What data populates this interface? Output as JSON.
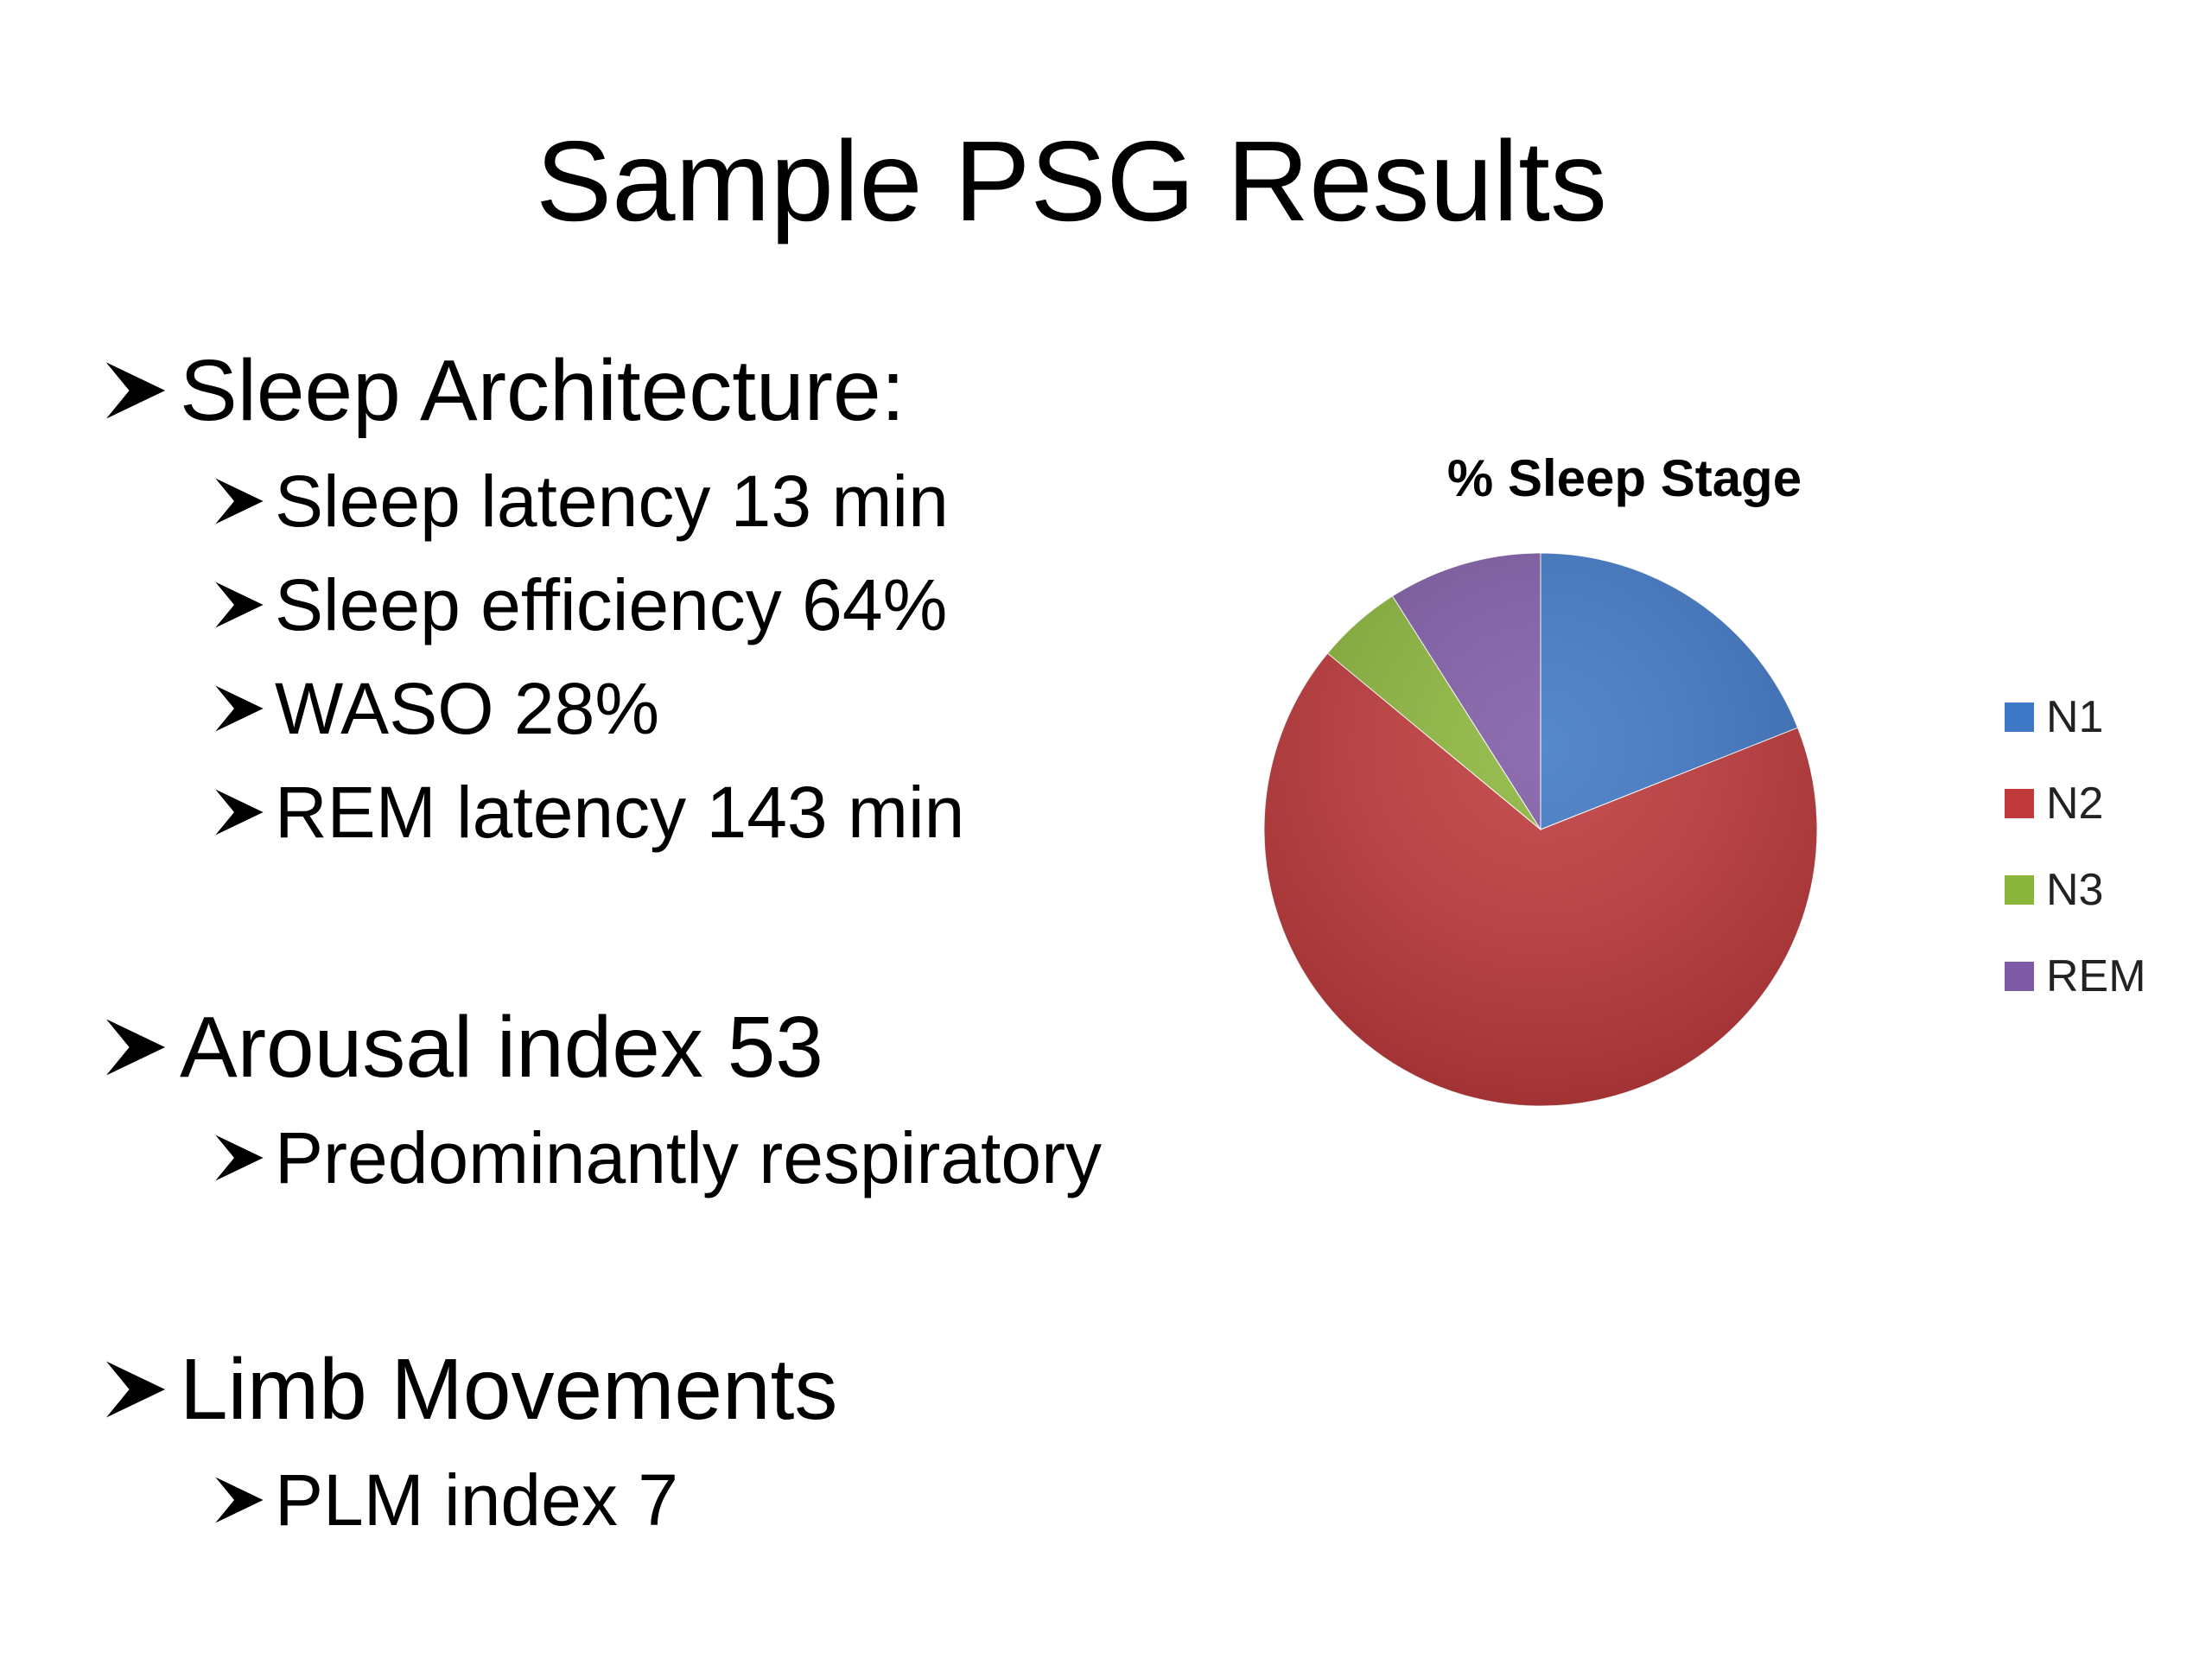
{
  "slide": {
    "title": "Sample PSG Results",
    "bullets": [
      {
        "level": 1,
        "text": "Sleep Architecture:"
      },
      {
        "level": 2,
        "text": " Sleep latency 13 min"
      },
      {
        "level": 2,
        "text": " Sleep efficiency 64%"
      },
      {
        "level": 2,
        "text": " WASO 28%"
      },
      {
        "level": 2,
        "text": "REM latency 143 min"
      },
      {
        "level": 1,
        "text": "Arousal index 53"
      },
      {
        "level": 2,
        "text": "Predominantly respiratory"
      },
      {
        "level": 1,
        "text": "Limb Movements"
      },
      {
        "level": 2,
        "text": "PLM index 7"
      }
    ],
    "bullet_icon": "arrowhead-bullet-icon"
  },
  "chart_data": {
    "type": "pie",
    "title": "% Sleep Stage",
    "categories": [
      "N1",
      "N2",
      "N3",
      "REM"
    ],
    "values": [
      19,
      67,
      5,
      9
    ],
    "colors": [
      "#3f78c6",
      "#c0393b",
      "#8bb63b",
      "#7f5ba6"
    ],
    "legend_position": "right",
    "start_angle_deg": 0,
    "direction": "clockwise"
  }
}
